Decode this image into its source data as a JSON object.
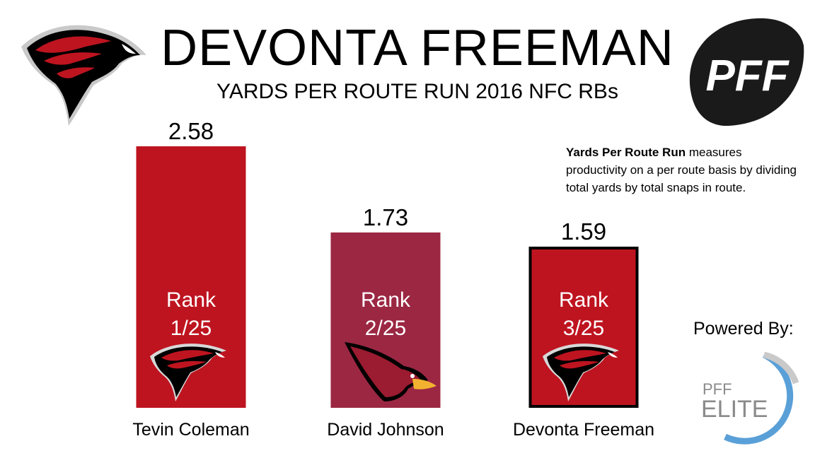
{
  "header": {
    "title": "DEVONTA FREEMAN",
    "subtitle": "YARDS PER ROUTE RUN 2016 NFC RBs"
  },
  "description": {
    "term": "Yards Per Route Run",
    "text": " measures productivity on a per route basis by dividing total yards by total snaps in route."
  },
  "brand": {
    "pff_logo": "PFF",
    "powered_by": "Powered By:",
    "elite_top": "PFF",
    "elite_bottom": "ELITE"
  },
  "colors": {
    "falcons_red": "#be1420",
    "cardinals_red": "#9b2743",
    "highlight_border": "#000000"
  },
  "chart_data": {
    "type": "bar",
    "categories": [
      "Tevin Coleman",
      "David Johnson",
      "Devonta Freeman"
    ],
    "values": [
      2.58,
      1.73,
      1.59
    ],
    "value_labels": [
      "2.58",
      "1.73",
      "1.59"
    ],
    "rank_label": "Rank",
    "ranks": [
      "1/25",
      "2/25",
      "3/25"
    ],
    "team_icons": [
      "falcons-icon",
      "cardinals-icon",
      "falcons-icon"
    ],
    "highlighted_category": "Devonta Freeman",
    "title": "YARDS PER ROUTE RUN 2016 NFC RBs",
    "xlabel": "",
    "ylabel": "",
    "ylim": [
      0,
      2.58
    ],
    "grid": false,
    "legend": "none"
  }
}
